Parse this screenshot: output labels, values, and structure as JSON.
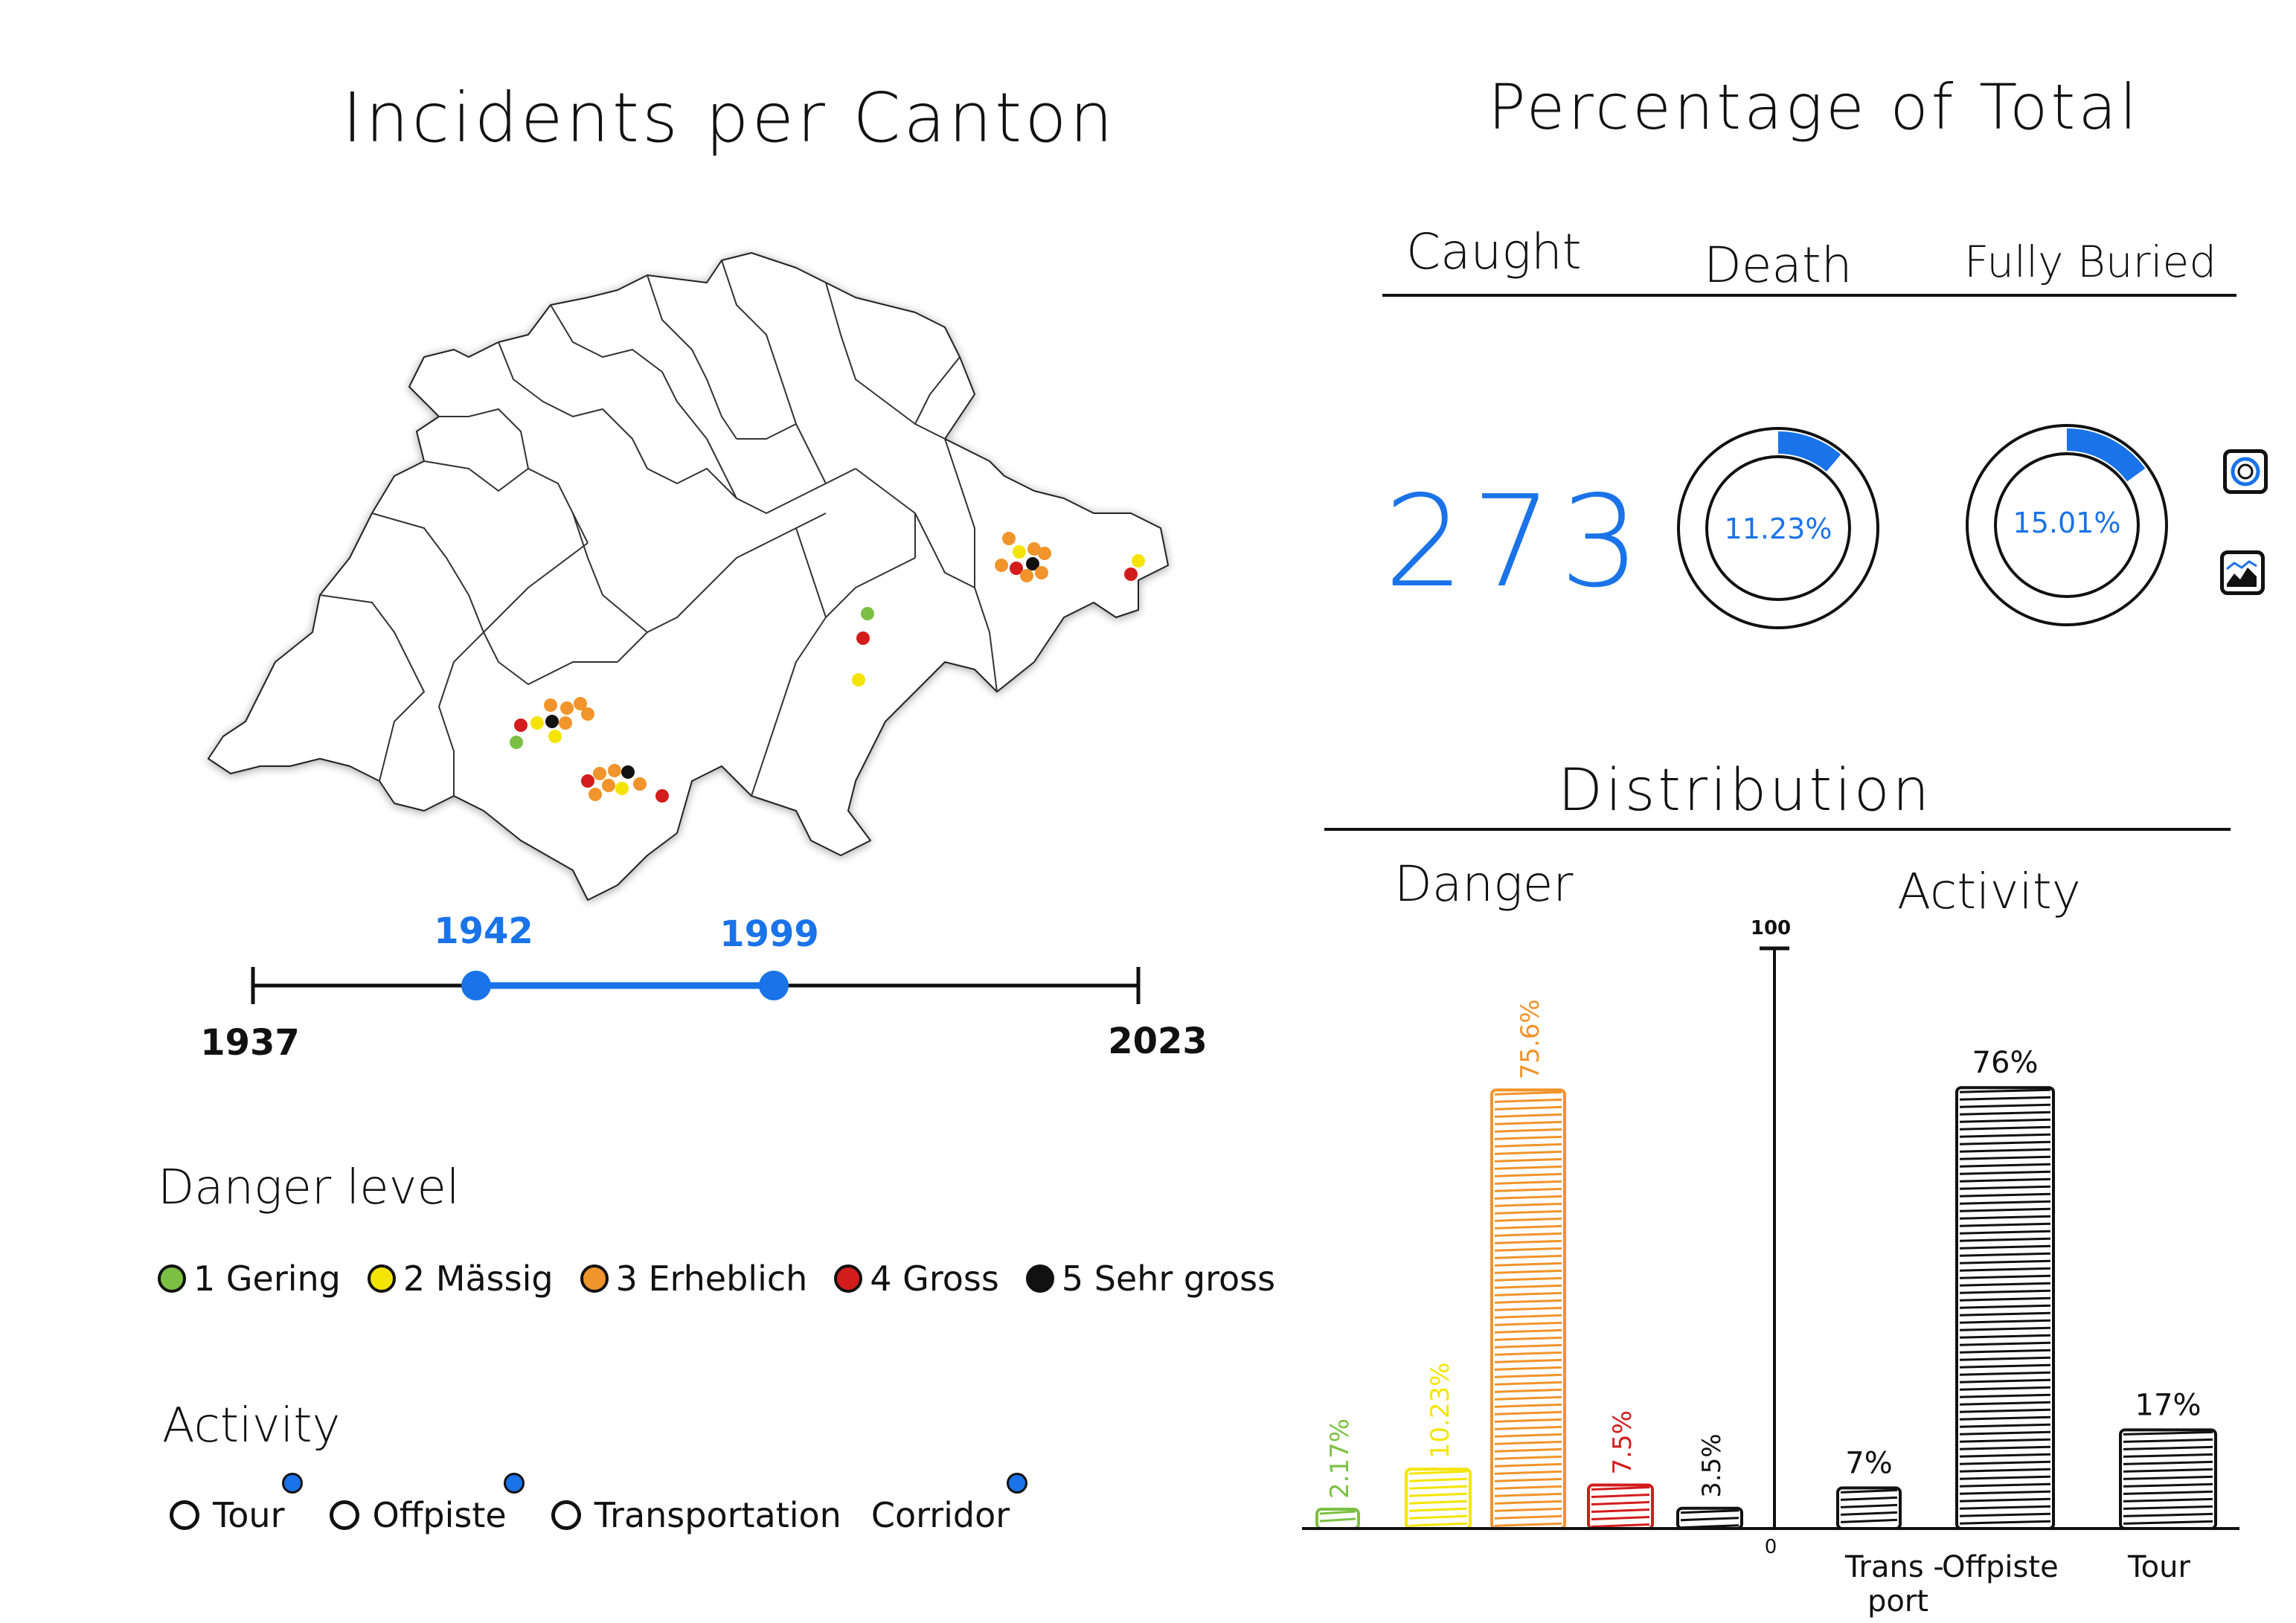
{
  "map": {
    "title": "Incidents per Canton",
    "dot_colors": {
      "gering": "#7cc043",
      "massig": "#f5e400",
      "erheblich": "#f0942b",
      "gross": "#d31c1c",
      "sehr_gross": "#111111"
    }
  },
  "timeline": {
    "min_label": "1937",
    "max_label": "2023",
    "start_label": "1942",
    "end_label": "1999",
    "accent": "#1a73e8"
  },
  "danger_legend": {
    "title": "Danger level",
    "items": [
      {
        "label": "1 Gering",
        "color": "#7cc043"
      },
      {
        "label": "2 Mässig",
        "color": "#f5e400"
      },
      {
        "label": "3 Erheblich",
        "color": "#f0942b"
      },
      {
        "label": "4 Gross",
        "color": "#d31c1c"
      },
      {
        "label": "5 Sehr gross",
        "color": "#111111"
      }
    ]
  },
  "activity_legend": {
    "title": "Activity",
    "items": [
      {
        "label": "Tour"
      },
      {
        "label": "Offpiste"
      },
      {
        "label": "Transportation"
      },
      {
        "label": "Corridor"
      }
    ]
  },
  "percentage": {
    "title": "Percentage of Total",
    "headers": {
      "caught": "Caught",
      "death": "Death",
      "buried": "Fully Buried"
    },
    "caught_value": "273",
    "death": {
      "label": "11.23%",
      "fraction": 0.1123
    },
    "buried": {
      "label": "15.01%",
      "fraction": 0.1501
    },
    "side_icons": [
      "donut-chart-icon",
      "area-chart-icon"
    ]
  },
  "distribution": {
    "title": "Distribution",
    "danger_label": "Danger",
    "activity_label": "Activity",
    "axis_top_label": "100",
    "axis_zero_label": "0"
  },
  "chart_data": [
    {
      "type": "bar",
      "title": "Danger",
      "categories": [
        "",
        "",
        "",
        "",
        ""
      ],
      "values": [
        2.17,
        10.23,
        75.6,
        7.5,
        3.5
      ],
      "labels": [
        "2.17%",
        "10.23%",
        "75.6%",
        "7.5%",
        "3.5%"
      ],
      "colors": [
        "#7cc043",
        "#f5e400",
        "#f0942b",
        "#d31c1c",
        "#111111"
      ],
      "ylim": [
        0,
        100
      ]
    },
    {
      "type": "bar",
      "title": "Activity",
      "categories": [
        "Trans-port",
        "Offpiste",
        "Tour"
      ],
      "values": [
        7,
        76,
        17
      ],
      "labels": [
        "7%",
        "76%",
        "17%"
      ],
      "colors": [
        "#111111",
        "#111111",
        "#111111"
      ],
      "ylim": [
        0,
        100
      ]
    }
  ]
}
